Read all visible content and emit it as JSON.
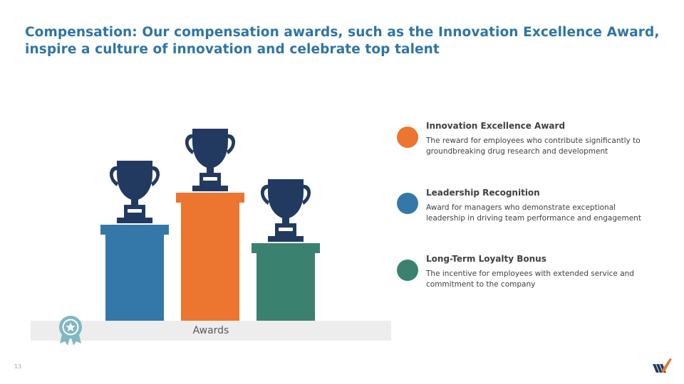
{
  "slide": {
    "title": "Compensation: Our compensation awards, such as the Innovation Excellence Award, inspire a culture of innovation and celebrate top talent",
    "page_number": "13"
  },
  "podium": {
    "base_label": "Awards",
    "colors": {
      "blue": "#3478A9",
      "orange": "#EC7530",
      "green": "#3A8170",
      "trophy": "#223A60"
    }
  },
  "legend": [
    {
      "title": "Innovation Excellence Award",
      "description": "The reward for employees who contribute significantly to groundbreaking drug research and development",
      "color": "#EC7530"
    },
    {
      "title": "Leadership Recognition",
      "description": "Award for managers who demonstrate exceptional leadership in driving team performance and engagement",
      "color": "#3478A9"
    },
    {
      "title": "Long-Term Loyalty Bonus",
      "description": "The incentive for employees with extended service and commitment to the company",
      "color": "#3A8170"
    }
  ]
}
